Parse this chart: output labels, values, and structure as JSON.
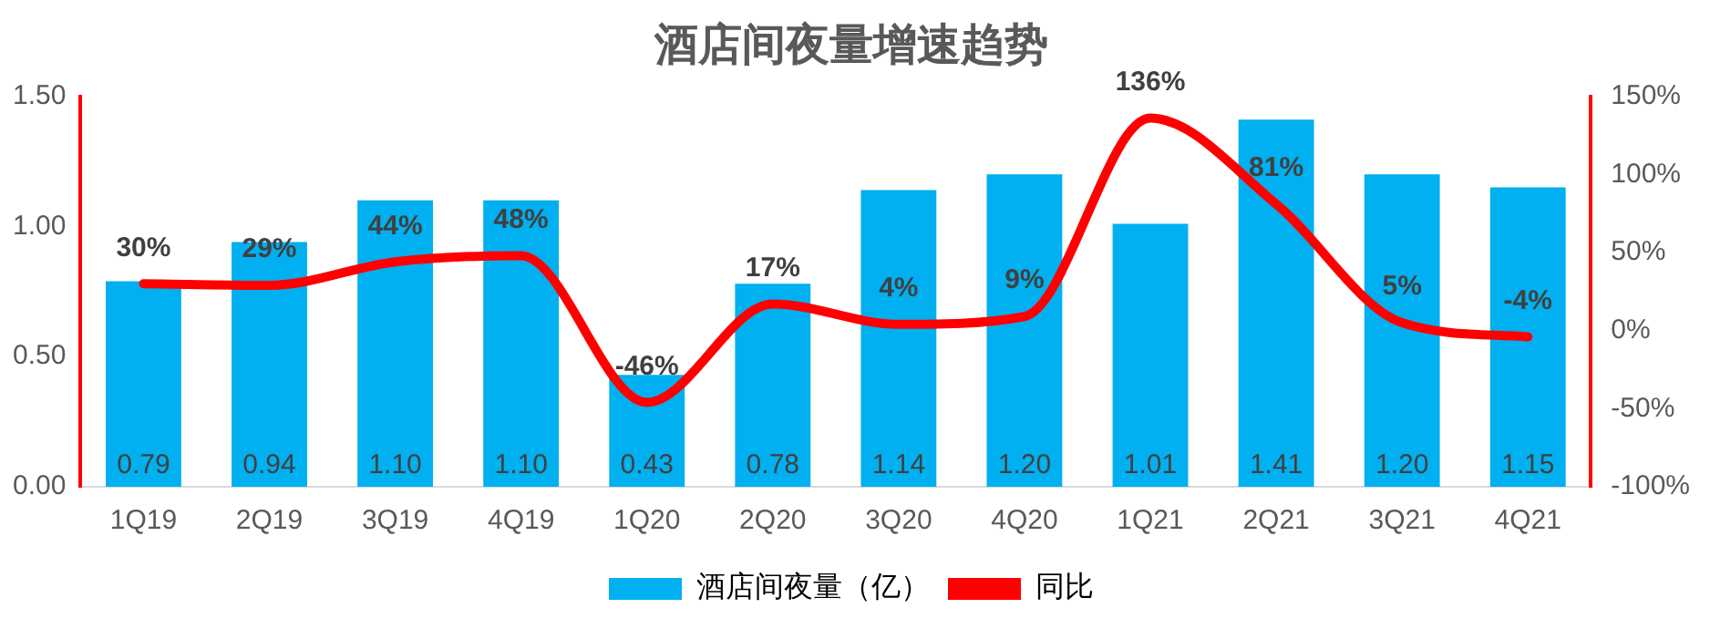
{
  "chart_data": {
    "type": "bar",
    "title": "酒店间夜量增速趋势",
    "categories": [
      "1Q19",
      "2Q19",
      "3Q19",
      "4Q19",
      "1Q20",
      "2Q20",
      "3Q20",
      "4Q20",
      "1Q21",
      "2Q21",
      "3Q21",
      "4Q21"
    ],
    "series": [
      {
        "name": "酒店间夜量（亿）",
        "color": "#00b0f0",
        "values": [
          0.79,
          0.94,
          1.1,
          1.1,
          0.43,
          0.78,
          1.14,
          1.2,
          1.01,
          1.41,
          1.2,
          1.15
        ],
        "value_labels": [
          "0.79",
          "0.94",
          "1.10",
          "1.10",
          "0.43",
          "0.78",
          "1.14",
          "1.20",
          "1.01",
          "1.41",
          "1.20",
          "1.15"
        ]
      },
      {
        "name": "同比",
        "type": "line",
        "axis": "y2",
        "color": "#ff0000",
        "values": [
          30,
          29,
          44,
          48,
          -46,
          17,
          4,
          9,
          136,
          81,
          5,
          -4
        ],
        "value_labels": [
          "30%",
          "29%",
          "44%",
          "48%",
          "-46%",
          "17%",
          "4%",
          "9%",
          "136%",
          "81%",
          "5%",
          "-4%"
        ]
      }
    ],
    "ylim": [
      0,
      1.5
    ],
    "yticks": [
      {
        "value": 0,
        "label": "0.00"
      },
      {
        "value": 0.5,
        "label": "0.50"
      },
      {
        "value": 1,
        "label": "1.00"
      },
      {
        "value": 1.5,
        "label": "1.50"
      }
    ],
    "y2lim": [
      -100,
      150
    ],
    "y2ticks": [
      {
        "value": -100,
        "label": "-100%"
      },
      {
        "value": -50,
        "label": "-50%"
      },
      {
        "value": 0,
        "label": "0%"
      },
      {
        "value": 50,
        "label": "50%"
      },
      {
        "value": 100,
        "label": "100%"
      },
      {
        "value": 150,
        "label": "150%"
      }
    ],
    "grid": false,
    "legend": "bottom",
    "marker": "none",
    "line_style": "solid"
  }
}
